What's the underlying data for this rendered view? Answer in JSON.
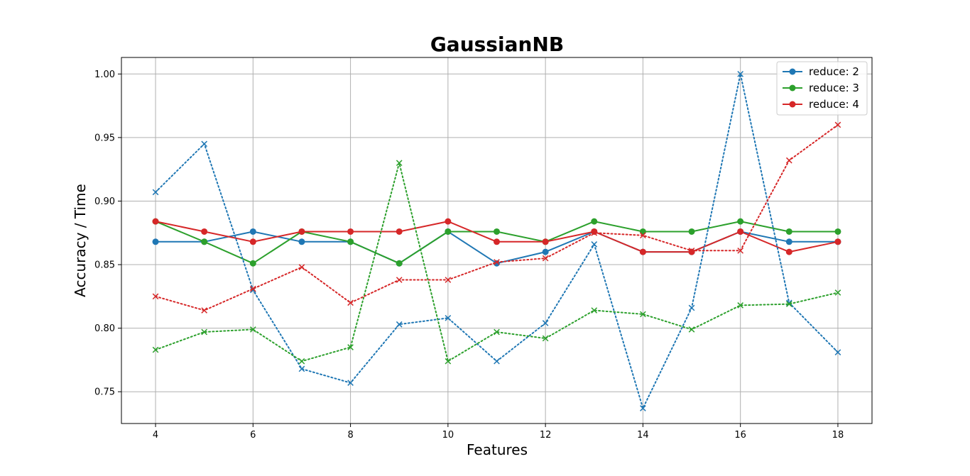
{
  "chart_data": {
    "type": "line",
    "title": "GaussianNB",
    "xlabel": "Features",
    "ylabel": "Accuracy / Time",
    "xlim": [
      3.3,
      18.7
    ],
    "ylim": [
      0.725,
      1.013
    ],
    "xticks": [
      4,
      6,
      8,
      10,
      12,
      14,
      16,
      18
    ],
    "xtick_labels": [
      "4",
      "6",
      "8",
      "10",
      "12",
      "14",
      "16",
      "18"
    ],
    "yticks": [
      0.75,
      0.8,
      0.85,
      0.9,
      0.95,
      1.0
    ],
    "ytick_labels": [
      "0.75",
      "0.80",
      "0.85",
      "0.90",
      "0.95",
      "1.00"
    ],
    "grid": true,
    "legend_position": "top-right",
    "x": [
      4,
      5,
      6,
      7,
      8,
      9,
      10,
      11,
      12,
      13,
      14,
      15,
      16,
      17,
      18
    ],
    "series": [
      {
        "name": "reduce: 2",
        "color": "#1f77b4",
        "style": "solid",
        "marker": "circle",
        "values": [
          0.868,
          0.868,
          0.876,
          0.868,
          0.868,
          0.851,
          0.876,
          0.851,
          0.86,
          0.876,
          0.86,
          0.86,
          0.876,
          0.868,
          0.868
        ]
      },
      {
        "name": "reduce: 3",
        "color": "#2ca02c",
        "style": "solid",
        "marker": "circle",
        "values": [
          0.884,
          0.868,
          0.851,
          0.876,
          0.868,
          0.851,
          0.876,
          0.876,
          0.868,
          0.884,
          0.876,
          0.876,
          0.884,
          0.876,
          0.876
        ]
      },
      {
        "name": "reduce: 4",
        "color": "#d62728",
        "style": "solid",
        "marker": "circle",
        "values": [
          0.884,
          0.876,
          0.868,
          0.876,
          0.876,
          0.876,
          0.884,
          0.868,
          0.868,
          0.876,
          0.86,
          0.86,
          0.876,
          0.86,
          0.868
        ]
      },
      {
        "color": "#1f77b4",
        "style": "dotted",
        "marker": "x",
        "values": [
          0.907,
          0.945,
          0.83,
          0.768,
          0.757,
          0.803,
          0.808,
          0.774,
          0.804,
          0.866,
          0.737,
          0.816,
          1.0,
          0.82,
          0.781
        ]
      },
      {
        "color": "#2ca02c",
        "style": "dotted",
        "marker": "x",
        "values": [
          0.783,
          0.797,
          0.799,
          0.774,
          0.785,
          0.93,
          0.774,
          0.797,
          0.792,
          0.814,
          0.811,
          0.799,
          0.818,
          0.819,
          0.828
        ]
      },
      {
        "color": "#d62728",
        "style": "dotted",
        "marker": "x",
        "values": [
          0.825,
          0.814,
          0.831,
          0.848,
          0.82,
          0.838,
          0.838,
          0.852,
          0.855,
          0.875,
          0.873,
          0.861,
          0.861,
          0.932,
          0.96
        ]
      }
    ]
  }
}
